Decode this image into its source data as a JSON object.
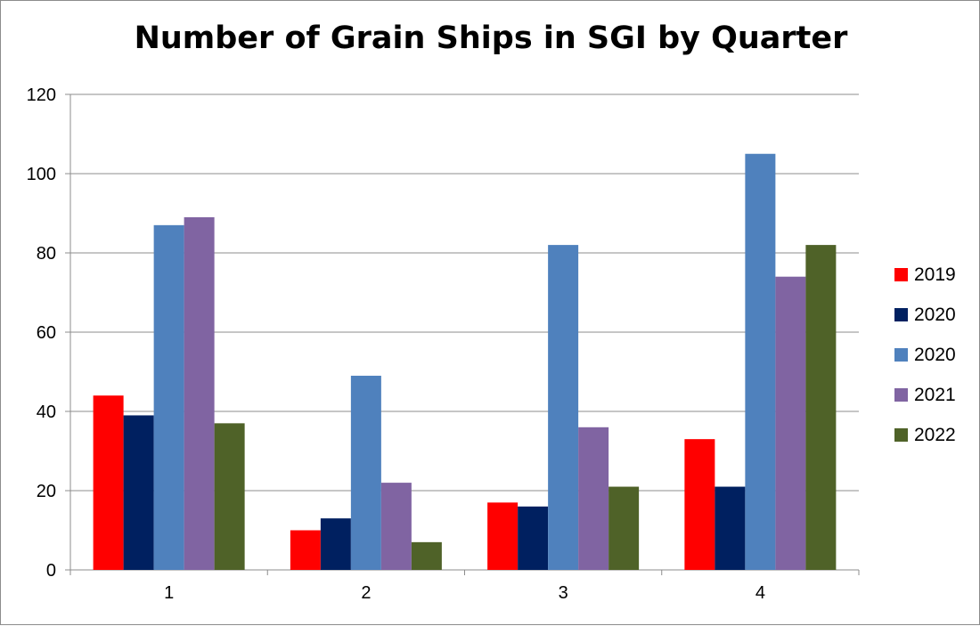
{
  "chart_data": {
    "type": "bar",
    "title": "Number of Grain Ships in SGI by Quarter",
    "categories": [
      "1",
      "2",
      "3",
      "4"
    ],
    "series": [
      {
        "name": "2019",
        "color": "#ff0000",
        "values": [
          44,
          10,
          17,
          33
        ]
      },
      {
        "name": "2020",
        "color": "#002060",
        "values": [
          39,
          13,
          16,
          21
        ]
      },
      {
        "name": "2020",
        "color": "#4f81bd",
        "values": [
          87,
          49,
          82,
          105
        ]
      },
      {
        "name": "2021",
        "color": "#8064a2",
        "values": [
          89,
          22,
          36,
          74
        ]
      },
      {
        "name": "2022",
        "color": "#4f6228",
        "values": [
          37,
          7,
          21,
          82
        ]
      }
    ],
    "ylim": [
      0,
      120
    ],
    "yticks": [
      0,
      20,
      40,
      60,
      80,
      100,
      120
    ],
    "grid": true,
    "legend_position": "right"
  }
}
